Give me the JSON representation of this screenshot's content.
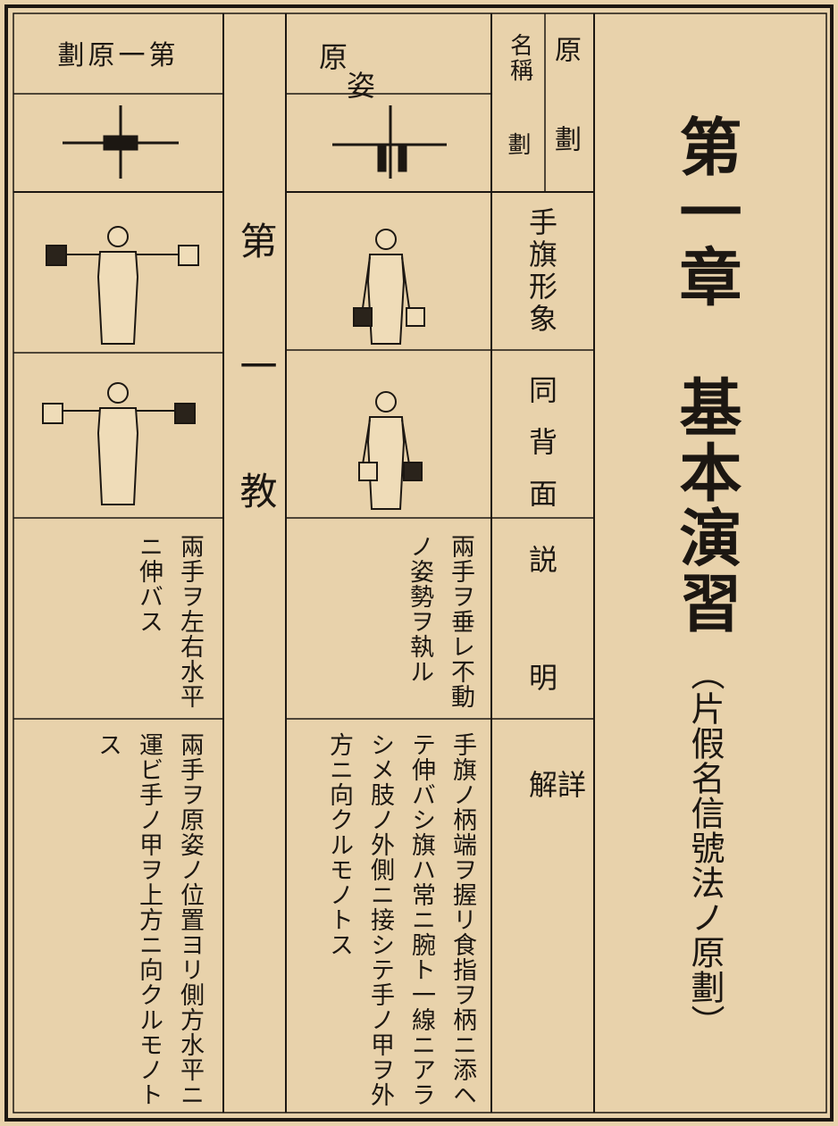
{
  "chapter": {
    "title": "第一章　基本演習",
    "subtitle": "（片假名信號法ノ原劃）"
  },
  "table": {
    "header_labels": {
      "original": "原劃",
      "name": "名稱",
      "stroke": "劃",
      "flag_form": "手旗形象",
      "back": "同背面",
      "description": "説明",
      "detail": "詳解"
    },
    "lesson": "第一教",
    "columns": [
      {
        "name": "原姿",
        "description": "兩手ヲ垂レ不動ノ姿勢ヲ執ル",
        "detail": "手旗ノ柄端ヲ握リ食指ヲ柄ニ添ヘテ伸バシ旗ハ常ニ腕ト一線ニアラシメ肢ノ外側ニ接シテ手ノ甲ヲ外方ニ向クルモノトス"
      },
      {
        "name": "第一原劃",
        "description": "兩手ヲ左右水平ニ伸バス",
        "detail": "兩手ヲ原姿ノ位置ヨリ側方水平ニ運ビ手ノ甲ヲ上方ニ向クルモノトス"
      }
    ]
  }
}
